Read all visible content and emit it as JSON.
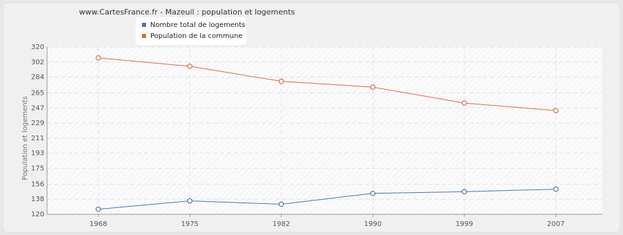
{
  "chart_data": {
    "type": "line",
    "title": "www.CartesFrance.fr - Mazeuil : population et logements",
    "y_label": "Population et logements",
    "categories": [
      "1968",
      "1975",
      "1982",
      "1990",
      "1999",
      "2007"
    ],
    "series": [
      {
        "name": "Nombre total de logements",
        "color": "#4a76a8",
        "values": [
          126,
          136,
          132,
          145,
          147,
          150
        ]
      },
      {
        "name": "Population de la commune",
        "color": "#e0693e",
        "values": [
          307,
          297,
          279,
          272,
          253,
          244
        ]
      }
    ],
    "ylim": [
      120,
      320
    ],
    "yticks": [
      120,
      138,
      156,
      175,
      193,
      211,
      229,
      247,
      265,
      284,
      302,
      320
    ],
    "grid": true
  }
}
